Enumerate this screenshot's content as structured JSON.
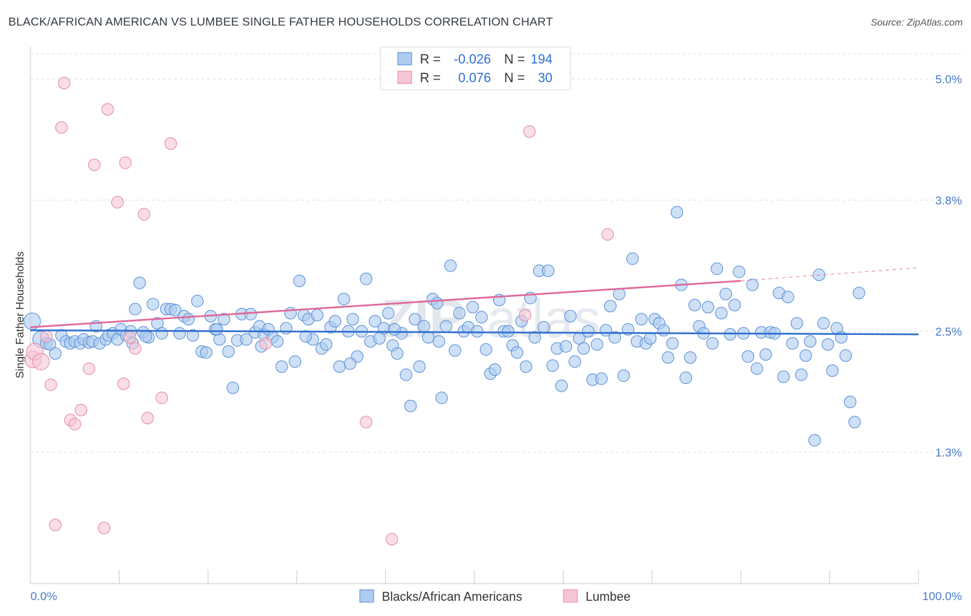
{
  "title": "BLACK/AFRICAN AMERICAN VS LUMBEE SINGLE FATHER HOUSEHOLDS CORRELATION CHART",
  "source": "Source: ZipAtlas.com",
  "watermark": {
    "zip": "ZIP",
    "atlas": "atlas"
  },
  "colors": {
    "blue_fill": "#aecbf0",
    "blue_stroke": "#5b8fd6",
    "blue_line": "#2f6fce",
    "pink_fill": "#f6c6d5",
    "pink_stroke": "#e48aa8",
    "pink_line": "#e0689a",
    "grid": "#dde1e8",
    "tick_label": "#4a7cc9"
  },
  "stats_box": {
    "rows": [
      {
        "r_label": "R =",
        "r_value": "-0.026",
        "n_label": "N =",
        "n_value": "194"
      },
      {
        "r_label": "R =",
        "r_value": "0.076",
        "n_label": "N =",
        "n_value": "30"
      }
    ]
  },
  "legend": {
    "items": [
      "Blacks/African Americans",
      "Lumbee"
    ]
  },
  "chart_data": {
    "type": "scatter",
    "xlabel": "",
    "ylabel": "Single Father Households",
    "xlim": [
      0,
      100
    ],
    "ylim": [
      0,
      5.25
    ],
    "x_tick_labels": [
      "0.0%",
      "100.0%"
    ],
    "y_ticks": [
      1.3,
      2.5,
      3.8,
      5.0
    ],
    "y_tick_labels": [
      "1.3%",
      "2.5%",
      "3.8%",
      "5.0%"
    ],
    "grid": true,
    "series": [
      {
        "name": "Blacks/African Americans",
        "r": -0.026,
        "n": 194,
        "trend": {
          "x0": 0,
          "y0": 2.51,
          "x1": 100,
          "y1": 2.47
        },
        "points": [
          [
            0.2,
            2.6
          ],
          [
            1.2,
            2.42
          ],
          [
            1.8,
            2.38
          ],
          [
            2.2,
            2.37
          ],
          [
            2.8,
            2.28
          ],
          [
            3.5,
            2.46
          ],
          [
            4,
            2.4
          ],
          [
            4.5,
            2.38
          ],
          [
            5,
            2.4
          ],
          [
            5.6,
            2.38
          ],
          [
            6,
            2.42
          ],
          [
            6.6,
            2.39
          ],
          [
            7,
            2.4
          ],
          [
            7.4,
            2.55
          ],
          [
            7.8,
            2.38
          ],
          [
            8.5,
            2.42
          ],
          [
            8.8,
            2.46
          ],
          [
            9.3,
            2.48
          ],
          [
            9.8,
            2.42
          ],
          [
            10.2,
            2.52
          ],
          [
            10.8,
            2.46
          ],
          [
            11.3,
            2.5
          ],
          [
            11.8,
            2.72
          ],
          [
            12.3,
            2.98
          ],
          [
            12.7,
            2.49
          ],
          [
            13.3,
            2.44
          ],
          [
            13.8,
            2.77
          ],
          [
            14.3,
            2.58
          ],
          [
            14.8,
            2.48
          ],
          [
            15.3,
            2.72
          ],
          [
            15.8,
            2.72
          ],
          [
            16.3,
            2.71
          ],
          [
            16.8,
            2.48
          ],
          [
            17.3,
            2.65
          ],
          [
            17.8,
            2.62
          ],
          [
            18.3,
            2.46
          ],
          [
            18.8,
            2.8
          ],
          [
            19.3,
            2.3
          ],
          [
            19.8,
            2.29
          ],
          [
            20.3,
            2.65
          ],
          [
            20.8,
            2.52
          ],
          [
            21.3,
            2.42
          ],
          [
            21.8,
            2.62
          ],
          [
            22.3,
            2.3
          ],
          [
            22.8,
            1.94
          ],
          [
            23.3,
            2.41
          ],
          [
            23.8,
            2.67
          ],
          [
            24.3,
            2.42
          ],
          [
            24.8,
            2.67
          ],
          [
            25.3,
            2.49
          ],
          [
            25.8,
            2.55
          ],
          [
            26.3,
            2.47
          ],
          [
            26.8,
            2.52
          ],
          [
            27.3,
            2.44
          ],
          [
            27.8,
            2.4
          ],
          [
            28.3,
            2.15
          ],
          [
            28.8,
            2.53
          ],
          [
            29.3,
            2.68
          ],
          [
            29.8,
            2.2
          ],
          [
            30.3,
            3.0
          ],
          [
            30.8,
            2.66
          ],
          [
            31.3,
            2.62
          ],
          [
            31.8,
            2.42
          ],
          [
            32.3,
            2.66
          ],
          [
            32.8,
            2.33
          ],
          [
            33.3,
            2.37
          ],
          [
            33.8,
            2.54
          ],
          [
            34.3,
            2.6
          ],
          [
            34.8,
            2.15
          ],
          [
            35.3,
            2.82
          ],
          [
            35.8,
            2.5
          ],
          [
            36.3,
            2.62
          ],
          [
            36.8,
            2.25
          ],
          [
            37.3,
            2.5
          ],
          [
            37.8,
            3.02
          ],
          [
            38.3,
            2.4
          ],
          [
            38.8,
            2.6
          ],
          [
            39.3,
            2.43
          ],
          [
            39.8,
            2.53
          ],
          [
            40.3,
            2.68
          ],
          [
            40.8,
            2.36
          ],
          [
            41.3,
            2.28
          ],
          [
            41.8,
            2.48
          ],
          [
            42.3,
            2.07
          ],
          [
            42.8,
            1.76
          ],
          [
            43.3,
            2.62
          ],
          [
            43.8,
            2.15
          ],
          [
            44.3,
            2.55
          ],
          [
            44.8,
            2.44
          ],
          [
            45.3,
            2.82
          ],
          [
            45.8,
            2.78
          ],
          [
            46.3,
            1.84
          ],
          [
            46.8,
            2.55
          ],
          [
            47.3,
            3.15
          ],
          [
            47.8,
            2.31
          ],
          [
            48.3,
            2.68
          ],
          [
            48.8,
            2.5
          ],
          [
            49.3,
            2.54
          ],
          [
            49.8,
            2.74
          ],
          [
            50.3,
            2.5
          ],
          [
            50.8,
            2.64
          ],
          [
            51.3,
            2.32
          ],
          [
            51.8,
            2.08
          ],
          [
            52.3,
            2.12
          ],
          [
            52.8,
            2.81
          ],
          [
            53.3,
            2.5
          ],
          [
            53.8,
            2.5
          ],
          [
            54.3,
            2.36
          ],
          [
            54.8,
            2.29
          ],
          [
            55.3,
            2.6
          ],
          [
            55.8,
            2.15
          ],
          [
            56.3,
            2.83
          ],
          [
            56.8,
            2.44
          ],
          [
            57.3,
            3.1
          ],
          [
            57.8,
            2.54
          ],
          [
            58.3,
            3.1
          ],
          [
            58.8,
            2.16
          ],
          [
            59.3,
            2.33
          ],
          [
            59.8,
            1.96
          ],
          [
            60.3,
            2.35
          ],
          [
            60.8,
            2.65
          ],
          [
            61.3,
            2.2
          ],
          [
            61.8,
            2.43
          ],
          [
            62.3,
            2.33
          ],
          [
            62.8,
            2.5
          ],
          [
            63.3,
            2.02
          ],
          [
            63.8,
            2.37
          ],
          [
            64.3,
            2.03
          ],
          [
            64.8,
            2.51
          ],
          [
            65.3,
            2.75
          ],
          [
            65.8,
            2.44
          ],
          [
            66.3,
            2.87
          ],
          [
            66.8,
            2.06
          ],
          [
            67.3,
            2.52
          ],
          [
            67.8,
            3.22
          ],
          [
            68.3,
            2.4
          ],
          [
            68.8,
            2.62
          ],
          [
            69.3,
            2.38
          ],
          [
            69.8,
            2.43
          ],
          [
            70.3,
            2.62
          ],
          [
            70.8,
            2.58
          ],
          [
            71.3,
            2.51
          ],
          [
            71.8,
            2.24
          ],
          [
            72.3,
            2.38
          ],
          [
            72.8,
            3.68
          ],
          [
            73.3,
            2.96
          ],
          [
            73.8,
            2.04
          ],
          [
            74.3,
            2.24
          ],
          [
            74.8,
            2.76
          ],
          [
            75.3,
            2.55
          ],
          [
            75.8,
            2.48
          ],
          [
            76.3,
            2.74
          ],
          [
            76.8,
            2.38
          ],
          [
            77.3,
            3.12
          ],
          [
            77.8,
            2.68
          ],
          [
            78.3,
            2.87
          ],
          [
            78.8,
            2.47
          ],
          [
            79.3,
            2.76
          ],
          [
            79.8,
            3.09
          ],
          [
            80.3,
            2.48
          ],
          [
            80.8,
            2.25
          ],
          [
            81.3,
            2.96
          ],
          [
            81.8,
            2.13
          ],
          [
            82.3,
            2.49
          ],
          [
            82.8,
            2.27
          ],
          [
            83.3,
            2.49
          ],
          [
            83.8,
            2.48
          ],
          [
            84.3,
            2.88
          ],
          [
            84.8,
            2.05
          ],
          [
            85.3,
            2.84
          ],
          [
            85.8,
            2.38
          ],
          [
            86.3,
            2.58
          ],
          [
            86.8,
            2.07
          ],
          [
            87.3,
            2.26
          ],
          [
            87.8,
            2.4
          ],
          [
            88.3,
            1.42
          ],
          [
            88.8,
            3.06
          ],
          [
            89.3,
            2.58
          ],
          [
            89.8,
            2.37
          ],
          [
            90.3,
            2.11
          ],
          [
            90.8,
            2.53
          ],
          [
            91.3,
            2.44
          ],
          [
            91.8,
            2.26
          ],
          [
            92.3,
            1.8
          ],
          [
            92.8,
            1.6
          ],
          [
            93.3,
            2.88
          ],
          [
            11.5,
            2.38
          ],
          [
            13.0,
            2.45
          ],
          [
            21.0,
            2.52
          ],
          [
            26.0,
            2.35
          ],
          [
            31.0,
            2.45
          ],
          [
            36.0,
            2.18
          ],
          [
            41.0,
            2.52
          ],
          [
            46.0,
            2.4
          ]
        ]
      },
      {
        "name": "Lumbee",
        "r": 0.076,
        "n": 30,
        "trend": {
          "x0": 0,
          "y0": 2.54,
          "x1": 80,
          "y1": 3.0,
          "dash_to": {
            "x": 100,
            "y": 3.13
          }
        },
        "points": [
          [
            0.3,
            2.22
          ],
          [
            0.5,
            2.3
          ],
          [
            1.2,
            2.2
          ],
          [
            1.8,
            2.45
          ],
          [
            2.3,
            1.97
          ],
          [
            2.8,
            0.58
          ],
          [
            3.5,
            4.52
          ],
          [
            3.8,
            4.96
          ],
          [
            4.5,
            1.62
          ],
          [
            5.0,
            1.58
          ],
          [
            5.7,
            1.72
          ],
          [
            6.6,
            2.13
          ],
          [
            7.2,
            4.15
          ],
          [
            8.3,
            0.55
          ],
          [
            8.7,
            4.7
          ],
          [
            9.8,
            3.78
          ],
          [
            10.5,
            1.98
          ],
          [
            10.7,
            4.17
          ],
          [
            11.2,
            2.44
          ],
          [
            11.8,
            2.33
          ],
          [
            12.8,
            3.66
          ],
          [
            13.2,
            1.64
          ],
          [
            14.8,
            1.84
          ],
          [
            15.8,
            4.36
          ],
          [
            26.5,
            2.38
          ],
          [
            37.8,
            1.6
          ],
          [
            40.7,
            0.44
          ],
          [
            55.7,
            2.66
          ],
          [
            56.2,
            4.48
          ],
          [
            65.0,
            3.46
          ]
        ]
      }
    ]
  }
}
